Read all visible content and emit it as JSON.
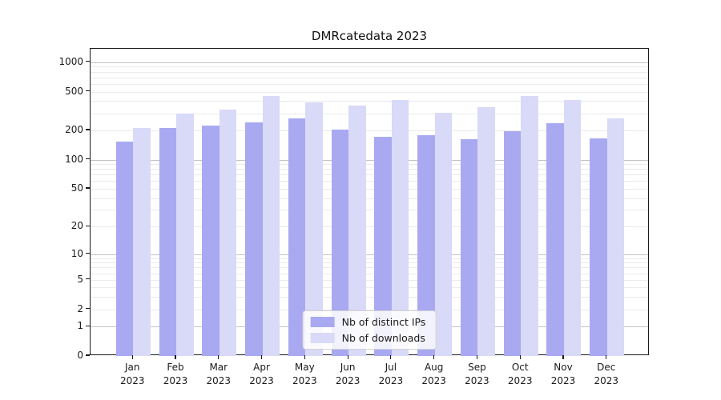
{
  "chart_data": {
    "type": "bar",
    "title": "DMRcatedata 2023",
    "xlabel": "",
    "ylabel": "",
    "yscale": "symlog (y proportional to log10(value+1))",
    "ylim": [
      0,
      1370
    ],
    "yticks": [
      0,
      1,
      2,
      5,
      10,
      20,
      50,
      100,
      200,
      500,
      1000
    ],
    "grid": "horizontal, major gray lines at 1/10/100/1000 plus faint minor lines at 2-9 multiples",
    "legend_position": "lower center",
    "categories": [
      "Jan 2023",
      "Feb 2023",
      "Mar 2023",
      "Apr 2023",
      "May 2023",
      "Jun 2023",
      "Jul 2023",
      "Aug 2023",
      "Sep 2023",
      "Oct 2023",
      "Nov 2023",
      "Dec 2023"
    ],
    "series": [
      {
        "name": "Nb of distinct IPs",
        "color": "#a9a9f2",
        "values": [
          154,
          212,
          224,
          241,
          266,
          204,
          172,
          179,
          163,
          196,
          239,
          165
        ]
      },
      {
        "name": "Nb of downloads",
        "color": "#d9d9f8",
        "values": [
          213,
          300,
          328,
          451,
          386,
          360,
          413,
          306,
          345,
          451,
          411,
          265
        ]
      }
    ]
  }
}
